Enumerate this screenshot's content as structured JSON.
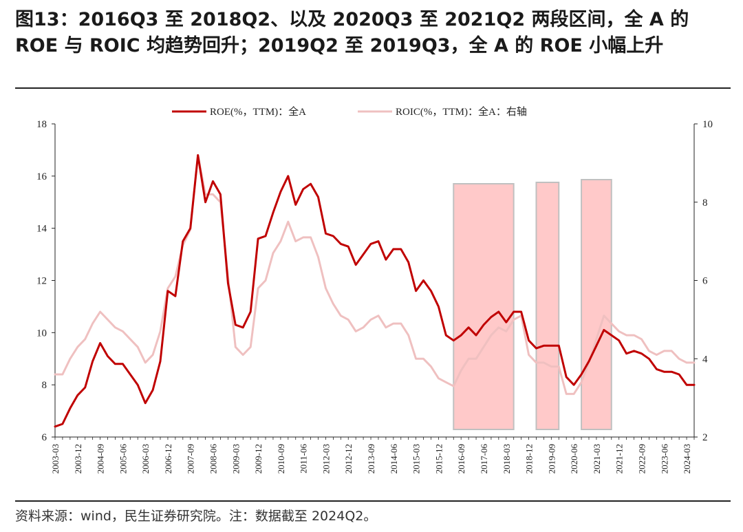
{
  "header": {
    "title": "图13：2016Q3 至 2018Q2、以及 2020Q3 至 2021Q2 两段区间，全 A 的 ROE 与 ROIC 均趋势回升；2019Q2 至 2019Q3，全 A 的 ROE 小幅上升"
  },
  "footer": {
    "source": "资料来源：wind，民生证券研究院。注：数据截至 2024Q2。"
  },
  "colors": {
    "roe": "#c00000",
    "roic": "#efc0c0",
    "shade_fill": "#ffc9c9",
    "shade_stroke": "#c0c0c0"
  },
  "chart_data": {
    "type": "line",
    "x_tick_labels": [
      "2003-03",
      "2003-12",
      "2004-09",
      "2005-06",
      "2006-03",
      "2006-12",
      "2007-09",
      "2008-06",
      "2009-03",
      "2009-12",
      "2010-09",
      "2011-06",
      "2012-03",
      "2012-12",
      "2013-09",
      "2014-06",
      "2015-03",
      "2015-12",
      "2016-09",
      "2017-06",
      "2018-03",
      "2018-12",
      "2019-09",
      "2020-06",
      "2021-03",
      "2021-12",
      "2022-09",
      "2023-06",
      "2024-03"
    ],
    "y_left": {
      "lim": [
        6,
        18
      ],
      "ticks": [
        6,
        8,
        10,
        12,
        14,
        16,
        18
      ]
    },
    "y_right": {
      "lim": [
        2,
        10
      ],
      "ticks": [
        2,
        4,
        6,
        8,
        10
      ]
    },
    "series": [
      {
        "name": "ROE(%，TTM)：全A",
        "axis": "left",
        "values": [
          6.4,
          6.5,
          7.1,
          7.6,
          7.9,
          8.9,
          9.6,
          9.1,
          8.8,
          8.8,
          8.4,
          8.0,
          7.3,
          7.8,
          8.9,
          11.6,
          11.4,
          13.5,
          14.0,
          16.8,
          15.0,
          15.8,
          15.3,
          11.9,
          10.3,
          10.2,
          10.8,
          13.6,
          13.7,
          14.6,
          15.4,
          16.0,
          14.9,
          15.5,
          15.7,
          15.2,
          13.8,
          13.7,
          13.4,
          13.3,
          12.6,
          13.0,
          13.4,
          13.5,
          12.8,
          13.2,
          13.2,
          12.7,
          11.6,
          12.0,
          11.6,
          11.0,
          9.9,
          9.7,
          9.9,
          10.2,
          9.9,
          10.3,
          10.6,
          10.8,
          10.4,
          10.8,
          10.8,
          9.7,
          9.4,
          9.5,
          9.5,
          9.5,
          8.3,
          8.0,
          8.4,
          8.9,
          9.5,
          10.1,
          9.9,
          9.7,
          9.2,
          9.3,
          9.2,
          9.0,
          8.6,
          8.5,
          8.5,
          8.4,
          8.0,
          8.0
        ]
      },
      {
        "name": "ROIC(%，TTM)：全A：右轴",
        "axis": "right",
        "values": [
          3.6,
          3.6,
          4.0,
          4.3,
          4.5,
          4.9,
          5.2,
          5.0,
          4.8,
          4.7,
          4.5,
          4.3,
          3.9,
          4.1,
          4.7,
          5.8,
          6.1,
          6.9,
          7.3,
          9.2,
          8.2,
          8.2,
          8.0,
          6.1,
          4.3,
          4.1,
          4.3,
          5.8,
          6.0,
          6.7,
          7.0,
          7.5,
          7.0,
          7.1,
          7.1,
          6.6,
          5.8,
          5.4,
          5.1,
          5.0,
          4.7,
          4.8,
          5.0,
          5.1,
          4.8,
          4.9,
          4.9,
          4.6,
          4.0,
          4.0,
          3.8,
          3.5,
          3.4,
          3.3,
          3.7,
          4.0,
          4.0,
          4.3,
          4.6,
          4.8,
          4.7,
          5.0,
          5.1,
          4.1,
          3.9,
          3.9,
          3.8,
          3.8,
          3.1,
          3.1,
          3.4,
          3.9,
          4.5,
          5.1,
          4.9,
          4.7,
          4.6,
          4.6,
          4.5,
          4.2,
          4.1,
          4.2,
          4.2,
          4.0,
          3.9,
          3.9
        ]
      }
    ],
    "shaded_ranges": [
      {
        "start_index": 53,
        "end_index": 61
      },
      {
        "start_index": 64,
        "end_index": 67
      },
      {
        "start_index": 70,
        "end_index": 74
      }
    ],
    "legend_placement": "top-center",
    "grid": false
  }
}
